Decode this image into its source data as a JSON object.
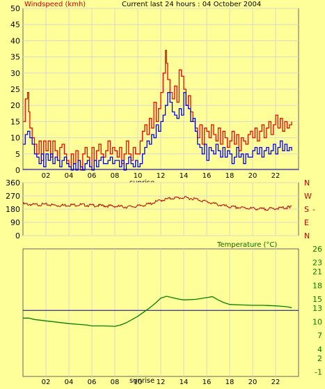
{
  "colors": {
    "background": "#ffff99",
    "plot_bg": "#ffff99",
    "grid": "#d8d8c8",
    "axis_text": "#000000",
    "gust": "#ff0000",
    "average": "#0000ff",
    "direction": "#cc0000",
    "temperature": "#008000",
    "avg_line": "#000080",
    "title_red": "#cc0000",
    "title_green": "#006600"
  },
  "chart_data": [
    {
      "id": "wind",
      "type": "line",
      "title": "Current last 24 hours : 04 October 2004",
      "ylabel": "Windspeed (kmh)",
      "ylim": [
        0,
        50
      ],
      "yticks": [
        0,
        5,
        10,
        15,
        20,
        25,
        30,
        35,
        40,
        45,
        50
      ],
      "xlim": [
        0,
        24
      ],
      "xticks": [
        2,
        4,
        6,
        8,
        10,
        12,
        14,
        16,
        18,
        20,
        22
      ],
      "xtick_labels": [
        "02",
        "04",
        "06",
        "08",
        "10",
        "12",
        "14",
        "16",
        "18",
        "20",
        "22"
      ],
      "marker_label": "sunrise",
      "marker_x": 10,
      "grid": true,
      "series": [
        {
          "key": "gust",
          "x": [
            0,
            0.2,
            0.4,
            0.5,
            0.6,
            0.8,
            1.0,
            1.2,
            1.4,
            1.6,
            1.8,
            2.0,
            2.2,
            2.4,
            2.6,
            2.8,
            3.0,
            3.2,
            3.4,
            3.6,
            3.8,
            4.0,
            4.2,
            4.4,
            4.6,
            4.8,
            5.0,
            5.2,
            5.4,
            5.6,
            5.8,
            6.0,
            6.2,
            6.4,
            6.6,
            6.8,
            7.0,
            7.2,
            7.4,
            7.6,
            7.8,
            8.0,
            8.2,
            8.4,
            8.6,
            8.8,
            9.0,
            9.2,
            9.4,
            9.6,
            9.8,
            10.0,
            10.2,
            10.4,
            10.6,
            10.8,
            11.0,
            11.2,
            11.4,
            11.6,
            11.8,
            12.0,
            12.2,
            12.4,
            12.5,
            12.6,
            12.8,
            13.0,
            13.2,
            13.4,
            13.6,
            13.8,
            14.0,
            14.2,
            14.4,
            14.6,
            14.8,
            15.0,
            15.2,
            15.4,
            15.6,
            15.8,
            16.0,
            16.2,
            16.4,
            16.6,
            16.8,
            17.0,
            17.2,
            17.4,
            17.6,
            17.8,
            18.0,
            18.2,
            18.4,
            18.6,
            18.8,
            19.0,
            19.2,
            19.4,
            19.6,
            19.8,
            20.0,
            20.2,
            20.4,
            20.6,
            20.8,
            21.0,
            21.2,
            21.4,
            21.6,
            21.8,
            22.0,
            22.2,
            22.4,
            22.6,
            22.8,
            23.0,
            23.2,
            23.4
          ],
          "y": [
            15,
            22,
            24,
            18,
            13,
            10,
            8,
            5,
            9,
            3,
            9,
            6,
            9,
            4,
            9,
            6,
            3,
            7,
            8,
            5,
            3,
            1,
            5,
            2,
            6,
            3,
            0,
            5,
            7,
            4,
            1,
            7,
            3,
            6,
            8,
            5,
            4,
            6,
            9,
            5,
            7,
            6,
            4,
            7,
            2,
            5,
            9,
            5,
            3,
            7,
            5,
            5,
            9,
            12,
            14,
            11,
            16,
            13,
            21,
            15,
            19,
            24,
            30,
            37,
            33,
            28,
            24,
            22,
            26,
            21,
            31,
            29,
            25,
            20,
            23,
            18,
            15,
            13,
            10,
            14,
            8,
            13,
            12,
            10,
            14,
            11,
            9,
            13,
            8,
            12,
            10,
            7,
            9,
            12,
            8,
            11,
            6,
            10,
            9,
            8,
            11,
            12,
            10,
            13,
            9,
            12,
            14,
            10,
            13,
            15,
            11,
            14,
            17,
            13,
            16,
            12,
            15,
            13,
            14,
            15
          ],
          "name": ""
        },
        {
          "key": "average",
          "x": [
            0,
            0.2,
            0.4,
            0.6,
            0.8,
            1.0,
            1.2,
            1.4,
            1.6,
            1.8,
            2.0,
            2.2,
            2.4,
            2.6,
            2.8,
            3.0,
            3.2,
            3.4,
            3.6,
            3.8,
            4.0,
            4.2,
            4.4,
            4.6,
            4.8,
            5.0,
            5.2,
            5.4,
            5.6,
            5.8,
            6.0,
            6.2,
            6.4,
            6.6,
            6.8,
            7.0,
            7.2,
            7.4,
            7.6,
            7.8,
            8.0,
            8.2,
            8.4,
            8.6,
            8.8,
            9.0,
            9.2,
            9.4,
            9.6,
            9.8,
            10.0,
            10.2,
            10.4,
            10.6,
            10.8,
            11.0,
            11.2,
            11.4,
            11.6,
            11.8,
            12.0,
            12.2,
            12.4,
            12.6,
            12.8,
            13.0,
            13.2,
            13.4,
            13.6,
            13.8,
            14.0,
            14.2,
            14.4,
            14.6,
            14.8,
            15.0,
            15.2,
            15.4,
            15.6,
            15.8,
            16.0,
            16.2,
            16.4,
            16.6,
            16.8,
            17.0,
            17.2,
            17.4,
            17.6,
            17.8,
            18.0,
            18.2,
            18.4,
            18.6,
            18.8,
            19.0,
            19.2,
            19.4,
            19.6,
            19.8,
            20.0,
            20.2,
            20.4,
            20.6,
            20.8,
            21.0,
            21.2,
            21.4,
            21.6,
            21.8,
            22.0,
            22.2,
            22.4,
            22.6,
            22.8,
            23.0,
            23.2,
            23.4
          ],
          "y": [
            8,
            11,
            12,
            10,
            8,
            5,
            4,
            2,
            5,
            1,
            5,
            3,
            5,
            2,
            4,
            3,
            1,
            3,
            4,
            2,
            1,
            0,
            2,
            0,
            3,
            1,
            0,
            2,
            3,
            1,
            0,
            3,
            1,
            3,
            4,
            2,
            2,
            3,
            4,
            2,
            3,
            3,
            1,
            3,
            0,
            2,
            4,
            2,
            1,
            3,
            1,
            2,
            5,
            7,
            9,
            8,
            11,
            10,
            14,
            12,
            15,
            17,
            20,
            24,
            21,
            18,
            17,
            16,
            19,
            17,
            24,
            20,
            19,
            15,
            16,
            12,
            8,
            7,
            5,
            8,
            3,
            7,
            6,
            5,
            8,
            6,
            4,
            7,
            4,
            6,
            5,
            2,
            4,
            7,
            4,
            5,
            2,
            5,
            4,
            4,
            6,
            7,
            5,
            7,
            4,
            6,
            7,
            5,
            6,
            8,
            5,
            7,
            9,
            6,
            8,
            6,
            7,
            6
          ],
          "name": ""
        }
      ]
    },
    {
      "id": "direction",
      "type": "line",
      "ylim": [
        0,
        360
      ],
      "yticks": [
        0,
        90,
        180,
        270,
        360
      ],
      "right_labels": [
        "N",
        "W",
        "S",
        "E",
        "N"
      ],
      "right_tick_values": [
        360,
        270,
        180,
        90,
        0
      ],
      "xlim": [
        0,
        24
      ],
      "xticks": [
        2,
        4,
        6,
        8,
        10,
        12,
        14,
        16,
        18,
        20,
        22
      ],
      "grid": true,
      "series": [
        {
          "key": "direction",
          "x": [
            0,
            1,
            2,
            3,
            4,
            5,
            6,
            7,
            8,
            9,
            10,
            11,
            12,
            13,
            14,
            15,
            16,
            17,
            18,
            19,
            20,
            21,
            22,
            23,
            23.4
          ],
          "y": [
            215,
            210,
            212,
            205,
            208,
            210,
            205,
            203,
            200,
            195,
            200,
            215,
            240,
            255,
            258,
            250,
            230,
            210,
            195,
            190,
            185,
            180,
            185,
            190,
            205
          ],
          "name": ""
        }
      ]
    },
    {
      "id": "temperature",
      "type": "line",
      "title": "Temperature (°C)",
      "ylim": [
        -2,
        26
      ],
      "yticks": [
        -1,
        2,
        4,
        7,
        10,
        13,
        15,
        18,
        21,
        23,
        26
      ],
      "xlim": [
        0,
        24
      ],
      "xticks": [
        2,
        4,
        6,
        8,
        10,
        12,
        14,
        16,
        18,
        20,
        22
      ],
      "xtick_labels": [
        "02",
        "04",
        "06",
        "08",
        "10",
        "12",
        "14",
        "16",
        "18",
        "20",
        "22"
      ],
      "marker_label": "sunrise",
      "marker_x": 10,
      "grid": true,
      "reference_line": 12.5,
      "series": [
        {
          "key": "temperature",
          "x": [
            0,
            0.5,
            1.0,
            2,
            3,
            4,
            5,
            5.5,
            6,
            7,
            8,
            8.5,
            9,
            9.5,
            10,
            10.5,
            11,
            11.5,
            12,
            12.5,
            13,
            13.5,
            14,
            15,
            16,
            16.5,
            17,
            17.5,
            18,
            19,
            20,
            21,
            22,
            22.5,
            23,
            23.4
          ],
          "y": [
            10.8,
            10.8,
            10.5,
            10.2,
            9.9,
            9.6,
            9.4,
            9.3,
            9.1,
            9.1,
            9.0,
            9.3,
            9.8,
            10.5,
            11.2,
            12.1,
            13.0,
            14.0,
            15.2,
            15.6,
            15.3,
            15.0,
            14.8,
            14.9,
            15.3,
            15.5,
            14.8,
            14.2,
            13.8,
            13.7,
            13.6,
            13.6,
            13.5,
            13.4,
            13.3,
            13.1
          ],
          "name": ""
        }
      ]
    }
  ],
  "labels": {
    "wind_ylabel": "Windspeed (kmh)",
    "wind_title": "Current last 24 hours : 04 October 2004",
    "sunrise_top": "sunrise",
    "sunrise_bottom": "sunrise",
    "temp_title": "Temperature (°C)"
  }
}
